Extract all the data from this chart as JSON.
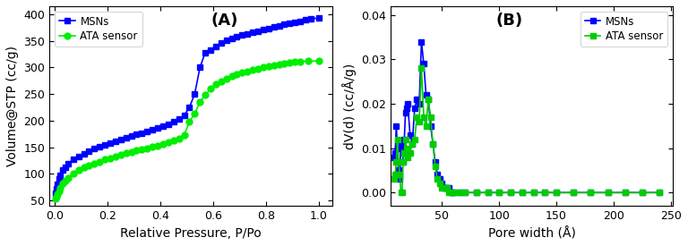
{
  "panel_A": {
    "title": "(A)",
    "xlabel": "Relative Pressure, P/Po",
    "ylabel": "Volume@STP (cc/g)",
    "xlim": [
      -0.02,
      1.05
    ],
    "ylim": [
      40,
      415
    ],
    "yticks": [
      50,
      100,
      150,
      200,
      250,
      300,
      350,
      400
    ],
    "xticks": [
      0.0,
      0.2,
      0.4,
      0.6,
      0.8,
      1.0
    ],
    "msns_color": "#0000FF",
    "ata_color": "#00EE00",
    "msns_x": [
      0.004,
      0.007,
      0.01,
      0.015,
      0.02,
      0.03,
      0.04,
      0.05,
      0.07,
      0.09,
      0.11,
      0.13,
      0.15,
      0.17,
      0.19,
      0.21,
      0.23,
      0.25,
      0.27,
      0.29,
      0.31,
      0.33,
      0.35,
      0.37,
      0.39,
      0.41,
      0.43,
      0.45,
      0.47,
      0.49,
      0.51,
      0.53,
      0.55,
      0.57,
      0.59,
      0.61,
      0.63,
      0.65,
      0.67,
      0.69,
      0.71,
      0.73,
      0.75,
      0.77,
      0.79,
      0.81,
      0.83,
      0.85,
      0.87,
      0.89,
      0.91,
      0.93,
      0.95,
      0.97,
      1.0
    ],
    "msns_y": [
      63,
      72,
      80,
      90,
      97,
      107,
      113,
      119,
      127,
      133,
      138,
      143,
      147,
      151,
      155,
      158,
      162,
      165,
      168,
      171,
      174,
      177,
      180,
      183,
      186,
      190,
      194,
      198,
      203,
      210,
      225,
      250,
      300,
      328,
      333,
      340,
      346,
      351,
      355,
      358,
      361,
      363,
      366,
      368,
      371,
      373,
      376,
      378,
      381,
      383,
      385,
      387,
      389,
      391,
      393
    ],
    "ata_x": [
      0.004,
      0.007,
      0.01,
      0.015,
      0.02,
      0.03,
      0.04,
      0.05,
      0.07,
      0.09,
      0.11,
      0.13,
      0.15,
      0.17,
      0.19,
      0.21,
      0.23,
      0.25,
      0.27,
      0.29,
      0.31,
      0.33,
      0.35,
      0.37,
      0.39,
      0.41,
      0.43,
      0.45,
      0.47,
      0.49,
      0.51,
      0.53,
      0.55,
      0.57,
      0.59,
      0.61,
      0.63,
      0.65,
      0.67,
      0.69,
      0.71,
      0.73,
      0.75,
      0.77,
      0.79,
      0.81,
      0.83,
      0.85,
      0.87,
      0.89,
      0.91,
      0.93,
      0.96,
      1.0
    ],
    "ata_y": [
      53,
      57,
      62,
      68,
      74,
      82,
      88,
      93,
      100,
      107,
      112,
      116,
      120,
      123,
      127,
      130,
      133,
      136,
      139,
      141,
      144,
      146,
      148,
      151,
      153,
      156,
      159,
      163,
      167,
      173,
      198,
      213,
      235,
      248,
      260,
      268,
      274,
      279,
      284,
      287,
      290,
      293,
      295,
      298,
      300,
      302,
      304,
      306,
      307,
      309,
      310,
      311,
      312,
      312
    ]
  },
  "panel_B": {
    "title": "(B)",
    "xlabel": "Pore width (Å)",
    "ylabel": "dV(d) (cc/Å/g)",
    "xlim": [
      5,
      252
    ],
    "ylim": [
      -0.003,
      0.042
    ],
    "yticks": [
      0.0,
      0.01,
      0.02,
      0.03,
      0.04
    ],
    "xticks": [
      50,
      100,
      150,
      200,
      250
    ],
    "msns_color": "#0000FF",
    "ata_color": "#00CC00",
    "msns_x": [
      8,
      9,
      10,
      11,
      12,
      13,
      14,
      15,
      16,
      17,
      18,
      19,
      20,
      22,
      24,
      26,
      28,
      30,
      32,
      34,
      36,
      38,
      40,
      42,
      44,
      46,
      48,
      50,
      52,
      54,
      56,
      58,
      60,
      65,
      70,
      80,
      90,
      100,
      110,
      120,
      130,
      140,
      150,
      165,
      180,
      195,
      210,
      225,
      240
    ],
    "msns_y": [
      0.008,
      0.009,
      0.015,
      0.01,
      0.005,
      0.003,
      0.011,
      0.011,
      0.007,
      0.012,
      0.018,
      0.019,
      0.02,
      0.013,
      0.011,
      0.019,
      0.021,
      0.02,
      0.034,
      0.029,
      0.022,
      0.021,
      0.015,
      0.011,
      0.007,
      0.004,
      0.003,
      0.002,
      0.001,
      0.001,
      0.001,
      0.0,
      0.0,
      0.0,
      0.0,
      0.0,
      0.0,
      0.0,
      0.0,
      0.0,
      0.0,
      0.0,
      0.0,
      0.0,
      0.0,
      0.0,
      0.0,
      0.0,
      0.0
    ],
    "ata_x": [
      8,
      9,
      10,
      11,
      12,
      13,
      14,
      15,
      16,
      17,
      18,
      19,
      20,
      22,
      24,
      26,
      28,
      30,
      32,
      34,
      36,
      38,
      40,
      42,
      44,
      46,
      48,
      50,
      52,
      54,
      56,
      58,
      60,
      65,
      70,
      80,
      90,
      100,
      110,
      120,
      130,
      140,
      150,
      165,
      180,
      195,
      210,
      225,
      240
    ],
    "ata_y": [
      0.003,
      0.004,
      0.007,
      0.012,
      0.007,
      0.004,
      0.0,
      0.0,
      0.007,
      0.009,
      0.012,
      0.01,
      0.008,
      0.009,
      0.011,
      0.012,
      0.017,
      0.016,
      0.028,
      0.017,
      0.015,
      0.021,
      0.017,
      0.011,
      0.006,
      0.003,
      0.002,
      0.001,
      0.001,
      0.001,
      0.0,
      0.0,
      0.0,
      0.0,
      0.0,
      0.0,
      0.0,
      0.0,
      0.0,
      0.0,
      0.0,
      0.0,
      0.0,
      0.0,
      0.0,
      0.0,
      0.0,
      0.0,
      0.0
    ]
  }
}
